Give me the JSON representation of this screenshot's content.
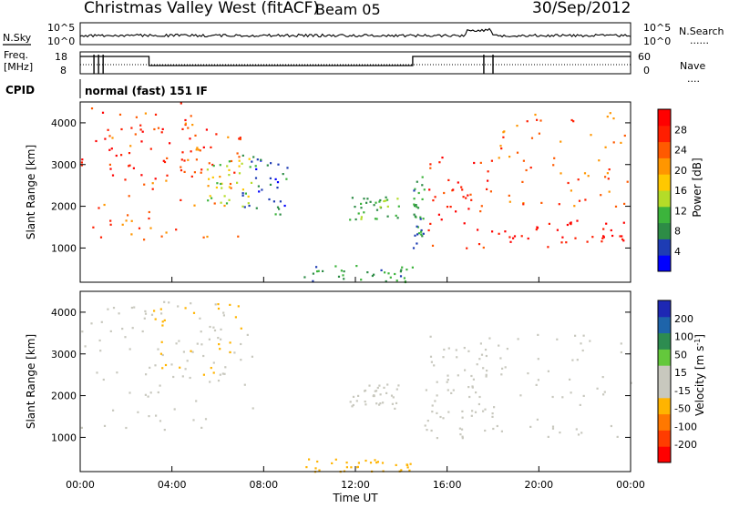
{
  "header": {
    "station": "Christmas Valley West (fitACF)",
    "beam": "Beam 05",
    "date": "30/Sep/2012"
  },
  "summary_panel": {
    "nsky_label": "N.Sky",
    "nsearch_label": "N.Search",
    "nsearch_dots": "......",
    "noise_ticks_left": [
      "10^5",
      "10^0"
    ],
    "noise_ticks_right": [
      "10^5",
      "10^0"
    ],
    "freq_label_1": "Freq.",
    "freq_label_2": "[MHz]",
    "freq_ticks": [
      "18",
      "8"
    ],
    "nave_label": "Nave",
    "nave_dots": "....",
    "nave_ticks": [
      "60",
      "0"
    ],
    "cpid_label": "CPID",
    "cpid_value": "normal (fast) 151 IF"
  },
  "colors": {
    "power_scale": [
      "#0000ff",
      "#1e3cb4",
      "#2d8c46",
      "#3cb43c",
      "#b4dc28",
      "#ffc800",
      "#ff9600",
      "#ff5a00",
      "#ff1e00",
      "#ff0000"
    ],
    "velocity_scale": [
      "#1e28b4",
      "#1e64aa",
      "#2d8c50",
      "#64c83c",
      "#c8c8be",
      "#c8c8be",
      "#ffb400",
      "#ff7800",
      "#ff3c00",
      "#ff0000"
    ]
  },
  "chart_data": [
    {
      "type": "heatmap",
      "panel": "power",
      "ylabel": "Slant Range [km]",
      "yticks": [
        "4000",
        "3000",
        "2000",
        "1000"
      ],
      "ylim": [
        180,
        4500
      ],
      "xlim": [
        "00:00",
        "24:00"
      ],
      "colorbar_label": "Power [dB]",
      "colorbar_ticks": [
        "28",
        "24",
        "20",
        "16",
        "12",
        "8",
        "4"
      ],
      "colorbar_range": [
        0,
        30
      ],
      "features": [
        {
          "t0": 0.0,
          "t1": 5.5,
          "r0": 2500,
          "r1": 4500,
          "value": 26
        },
        {
          "t0": 0.5,
          "t1": 7.0,
          "r0": 1200,
          "r1": 4300,
          "value": 22
        },
        {
          "t0": 5.5,
          "t1": 7.5,
          "r0": 2000,
          "r1": 3200,
          "value": 14
        },
        {
          "t0": 7.0,
          "t1": 9.0,
          "r0": 1800,
          "r1": 3300,
          "value": 6
        },
        {
          "t0": 9.7,
          "t1": 14.5,
          "r0": 200,
          "r1": 600,
          "value": 8
        },
        {
          "t0": 11.7,
          "t1": 14.0,
          "r0": 1700,
          "r1": 2300,
          "value": 10
        },
        {
          "t0": 14.5,
          "t1": 15.0,
          "r0": 1000,
          "r1": 2800,
          "value": 8
        },
        {
          "t0": 15.0,
          "t1": 18.0,
          "r0": 1000,
          "r1": 3200,
          "value": 26
        },
        {
          "t0": 18.2,
          "t1": 24.0,
          "r0": 1000,
          "r1": 1700,
          "value": 28
        },
        {
          "t0": 18.2,
          "t1": 24.0,
          "r0": 2000,
          "r1": 4300,
          "value": 22
        }
      ]
    },
    {
      "type": "heatmap",
      "panel": "velocity",
      "ylabel": "Slant Range [km]",
      "yticks": [
        "4000",
        "3000",
        "2000",
        "1000"
      ],
      "ylim": [
        180,
        4500
      ],
      "xlim": [
        "00:00",
        "24:00"
      ],
      "xticks": [
        "00:00",
        "04:00",
        "08:00",
        "12:00",
        "16:00",
        "20:00",
        "00:00"
      ],
      "xlabel": "Time UT",
      "colorbar_label": "Velocity [m s^-1]",
      "colorbar_ticks": [
        "200",
        "100",
        "50",
        "15",
        "-15",
        "-50",
        "-100",
        "-200"
      ],
      "colorbar_range": [
        -250,
        250
      ],
      "features": [
        {
          "t0": 0.0,
          "t1": 7.5,
          "r0": 1200,
          "r1": 4300,
          "value": 0
        },
        {
          "t0": 3.0,
          "t1": 7.0,
          "r0": 2500,
          "r1": 4300,
          "value": -50
        },
        {
          "t0": 9.7,
          "t1": 14.5,
          "r0": 200,
          "r1": 500,
          "value": -70
        },
        {
          "t0": 11.7,
          "t1": 14.0,
          "r0": 1700,
          "r1": 2300,
          "value": 40
        },
        {
          "t0": 15.0,
          "t1": 18.0,
          "r0": 1000,
          "r1": 3300,
          "value": 30
        },
        {
          "t0": 15.0,
          "t1": 24.0,
          "r0": 1000,
          "r1": 3500,
          "value": 0
        }
      ]
    }
  ]
}
